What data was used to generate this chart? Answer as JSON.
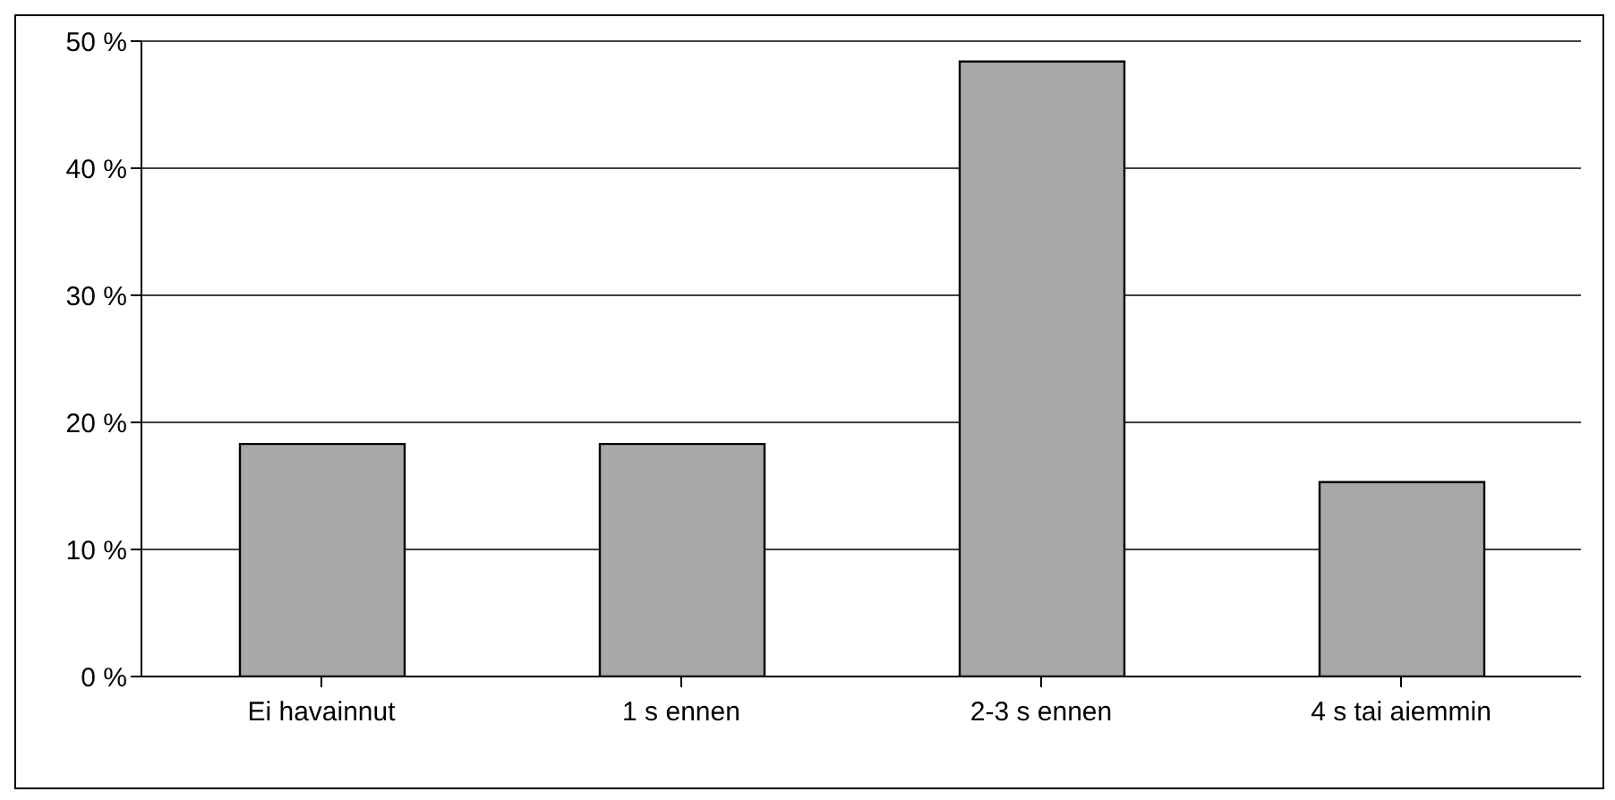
{
  "chart_data": {
    "type": "bar",
    "categories": [
      "Ei havainnut",
      "1 s ennen",
      "2-3 s ennen",
      "4 s tai aiemmin"
    ],
    "values": [
      18.3,
      18.3,
      48.4,
      15.3
    ],
    "color": "#a8a8a8",
    "ylim": [
      0,
      50
    ],
    "yticks": [
      {
        "value": 0,
        "label": "0 %"
      },
      {
        "value": 10,
        "label": "10 %"
      },
      {
        "value": 20,
        "label": "20 %"
      },
      {
        "value": 30,
        "label": "30 %"
      },
      {
        "value": 40,
        "label": "40 %"
      },
      {
        "value": 50,
        "label": "50 %"
      }
    ],
    "grid": "y",
    "legend": false
  }
}
